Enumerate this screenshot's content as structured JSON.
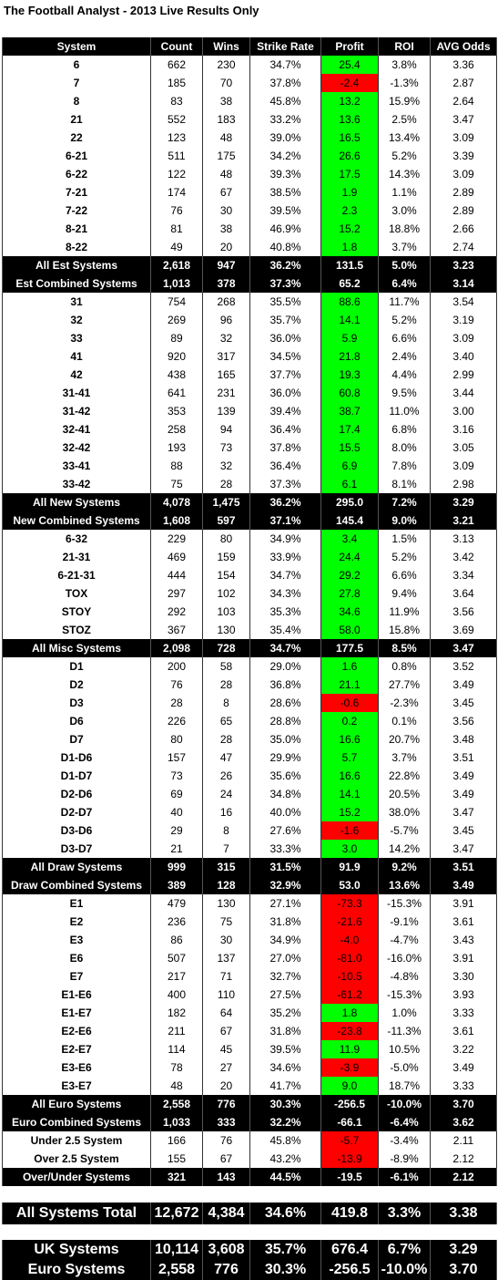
{
  "title": "The Football Analyst - 2013 Live Results Only",
  "profit_colors": {
    "positive": "#00ff00",
    "negative": "#ff0000"
  },
  "table": {
    "header": [
      "System",
      "Count",
      "Wins",
      "Strike Rate",
      "Profit",
      "ROI",
      "AVG Odds"
    ],
    "rows": [
      {
        "cells": [
          "6",
          "662",
          "230",
          "34.7%",
          "25.4",
          "3.8%",
          "3.36"
        ]
      },
      {
        "cells": [
          "7",
          "185",
          "70",
          "37.8%",
          "-2.4",
          "-1.3%",
          "2.87"
        ]
      },
      {
        "cells": [
          "8",
          "83",
          "38",
          "45.8%",
          "13.2",
          "15.9%",
          "2.64"
        ]
      },
      {
        "cells": [
          "21",
          "552",
          "183",
          "33.2%",
          "13.6",
          "2.5%",
          "3.47"
        ]
      },
      {
        "cells": [
          "22",
          "123",
          "48",
          "39.0%",
          "16.5",
          "13.4%",
          "3.09"
        ]
      },
      {
        "cells": [
          "6-21",
          "511",
          "175",
          "34.2%",
          "26.6",
          "5.2%",
          "3.39"
        ]
      },
      {
        "cells": [
          "6-22",
          "122",
          "48",
          "39.3%",
          "17.5",
          "14.3%",
          "3.09"
        ]
      },
      {
        "cells": [
          "7-21",
          "174",
          "67",
          "38.5%",
          "1.9",
          "1.1%",
          "2.89"
        ]
      },
      {
        "cells": [
          "7-22",
          "76",
          "30",
          "39.5%",
          "2.3",
          "3.0%",
          "2.89"
        ]
      },
      {
        "cells": [
          "8-21",
          "81",
          "38",
          "46.9%",
          "15.2",
          "18.8%",
          "2.66"
        ]
      },
      {
        "cells": [
          "8-22",
          "49",
          "20",
          "40.8%",
          "1.8",
          "3.7%",
          "2.74"
        ]
      },
      {
        "cells": [
          "All Est Systems",
          "2,618",
          "947",
          "36.2%",
          "131.5",
          "5.0%",
          "3.23"
        ],
        "style": "summary"
      },
      {
        "cells": [
          "Est Combined Systems",
          "1,013",
          "378",
          "37.3%",
          "65.2",
          "6.4%",
          "3.14"
        ],
        "style": "summary"
      },
      {
        "cells": [
          "31",
          "754",
          "268",
          "35.5%",
          "88.6",
          "11.7%",
          "3.54"
        ]
      },
      {
        "cells": [
          "32",
          "269",
          "96",
          "35.7%",
          "14.1",
          "5.2%",
          "3.19"
        ]
      },
      {
        "cells": [
          "33",
          "89",
          "32",
          "36.0%",
          "5.9",
          "6.6%",
          "3.09"
        ]
      },
      {
        "cells": [
          "41",
          "920",
          "317",
          "34.5%",
          "21.8",
          "2.4%",
          "3.40"
        ]
      },
      {
        "cells": [
          "42",
          "438",
          "165",
          "37.7%",
          "19.3",
          "4.4%",
          "2.99"
        ]
      },
      {
        "cells": [
          "31-41",
          "641",
          "231",
          "36.0%",
          "60.8",
          "9.5%",
          "3.44"
        ]
      },
      {
        "cells": [
          "31-42",
          "353",
          "139",
          "39.4%",
          "38.7",
          "11.0%",
          "3.00"
        ]
      },
      {
        "cells": [
          "32-41",
          "258",
          "94",
          "36.4%",
          "17.4",
          "6.8%",
          "3.16"
        ]
      },
      {
        "cells": [
          "32-42",
          "193",
          "73",
          "37.8%",
          "15.5",
          "8.0%",
          "3.05"
        ]
      },
      {
        "cells": [
          "33-41",
          "88",
          "32",
          "36.4%",
          "6.9",
          "7.8%",
          "3.09"
        ]
      },
      {
        "cells": [
          "33-42",
          "75",
          "28",
          "37.3%",
          "6.1",
          "8.1%",
          "2.98"
        ]
      },
      {
        "cells": [
          "All New Systems",
          "4,078",
          "1,475",
          "36.2%",
          "295.0",
          "7.2%",
          "3.29"
        ],
        "style": "summary"
      },
      {
        "cells": [
          "New Combined Systems",
          "1,608",
          "597",
          "37.1%",
          "145.4",
          "9.0%",
          "3.21"
        ],
        "style": "summary"
      },
      {
        "cells": [
          "6-32",
          "229",
          "80",
          "34.9%",
          "3.4",
          "1.5%",
          "3.13"
        ]
      },
      {
        "cells": [
          "21-31",
          "469",
          "159",
          "33.9%",
          "24.4",
          "5.2%",
          "3.42"
        ]
      },
      {
        "cells": [
          "6-21-31",
          "444",
          "154",
          "34.7%",
          "29.2",
          "6.6%",
          "3.34"
        ]
      },
      {
        "cells": [
          "TOX",
          "297",
          "102",
          "34.3%",
          "27.8",
          "9.4%",
          "3.64"
        ]
      },
      {
        "cells": [
          "STOY",
          "292",
          "103",
          "35.3%",
          "34.6",
          "11.9%",
          "3.56"
        ]
      },
      {
        "cells": [
          "STOZ",
          "367",
          "130",
          "35.4%",
          "58.0",
          "15.8%",
          "3.69"
        ]
      },
      {
        "cells": [
          "All Misc Systems",
          "2,098",
          "728",
          "34.7%",
          "177.5",
          "8.5%",
          "3.47"
        ],
        "style": "summary"
      },
      {
        "cells": [
          "D1",
          "200",
          "58",
          "29.0%",
          "1.6",
          "0.8%",
          "3.52"
        ]
      },
      {
        "cells": [
          "D2",
          "76",
          "28",
          "36.8%",
          "21.1",
          "27.7%",
          "3.49"
        ]
      },
      {
        "cells": [
          "D3",
          "28",
          "8",
          "28.6%",
          "-0.6",
          "-2.3%",
          "3.45"
        ]
      },
      {
        "cells": [
          "D6",
          "226",
          "65",
          "28.8%",
          "0.2",
          "0.1%",
          "3.56"
        ]
      },
      {
        "cells": [
          "D7",
          "80",
          "28",
          "35.0%",
          "16.6",
          "20.7%",
          "3.48"
        ]
      },
      {
        "cells": [
          "D1-D6",
          "157",
          "47",
          "29.9%",
          "5.7",
          "3.7%",
          "3.51"
        ]
      },
      {
        "cells": [
          "D1-D7",
          "73",
          "26",
          "35.6%",
          "16.6",
          "22.8%",
          "3.49"
        ]
      },
      {
        "cells": [
          "D2-D6",
          "69",
          "24",
          "34.8%",
          "14.1",
          "20.5%",
          "3.49"
        ]
      },
      {
        "cells": [
          "D2-D7",
          "40",
          "16",
          "40.0%",
          "15.2",
          "38.0%",
          "3.47"
        ]
      },
      {
        "cells": [
          "D3-D6",
          "29",
          "8",
          "27.6%",
          "-1.6",
          "-5.7%",
          "3.45"
        ]
      },
      {
        "cells": [
          "D3-D7",
          "21",
          "7",
          "33.3%",
          "3.0",
          "14.2%",
          "3.47"
        ]
      },
      {
        "cells": [
          "All Draw Systems",
          "999",
          "315",
          "31.5%",
          "91.9",
          "9.2%",
          "3.51"
        ],
        "style": "summary"
      },
      {
        "cells": [
          "Draw Combined Systems",
          "389",
          "128",
          "32.9%",
          "53.0",
          "13.6%",
          "3.49"
        ],
        "style": "summary"
      },
      {
        "cells": [
          "E1",
          "479",
          "130",
          "27.1%",
          "-73.3",
          "-15.3%",
          "3.91"
        ]
      },
      {
        "cells": [
          "E2",
          "236",
          "75",
          "31.8%",
          "-21.6",
          "-9.1%",
          "3.61"
        ]
      },
      {
        "cells": [
          "E3",
          "86",
          "30",
          "34.9%",
          "-4.0",
          "-4.7%",
          "3.43"
        ]
      },
      {
        "cells": [
          "E6",
          "507",
          "137",
          "27.0%",
          "-81.0",
          "-16.0%",
          "3.91"
        ]
      },
      {
        "cells": [
          "E7",
          "217",
          "71",
          "32.7%",
          "-10.5",
          "-4.8%",
          "3.30"
        ]
      },
      {
        "cells": [
          "E1-E6",
          "400",
          "110",
          "27.5%",
          "-61.2",
          "-15.3%",
          "3.93"
        ]
      },
      {
        "cells": [
          "E1-E7",
          "182",
          "64",
          "35.2%",
          "1.8",
          "1.0%",
          "3.33"
        ]
      },
      {
        "cells": [
          "E2-E6",
          "211",
          "67",
          "31.8%",
          "-23.8",
          "-11.3%",
          "3.61"
        ]
      },
      {
        "cells": [
          "E2-E7",
          "114",
          "45",
          "39.5%",
          "11.9",
          "10.5%",
          "3.22"
        ]
      },
      {
        "cells": [
          "E3-E6",
          "78",
          "27",
          "34.6%",
          "-3.9",
          "-5.0%",
          "3.49"
        ]
      },
      {
        "cells": [
          "E3-E7",
          "48",
          "20",
          "41.7%",
          "9.0",
          "18.7%",
          "3.33"
        ]
      },
      {
        "cells": [
          "All Euro Systems",
          "2,558",
          "776",
          "30.3%",
          "-256.5",
          "-10.0%",
          "3.70"
        ],
        "style": "summary"
      },
      {
        "cells": [
          "Euro Combined Systems",
          "1,033",
          "333",
          "32.2%",
          "-66.1",
          "-6.4%",
          "3.62"
        ],
        "style": "summary"
      },
      {
        "cells": [
          "Under 2.5 System",
          "166",
          "76",
          "45.8%",
          "-5.7",
          "-3.4%",
          "2.11"
        ]
      },
      {
        "cells": [
          "Over 2.5 System",
          "155",
          "67",
          "43.2%",
          "-13.9",
          "-8.9%",
          "2.12"
        ]
      },
      {
        "cells": [
          "Over/Under Systems",
          "321",
          "143",
          "44.5%",
          "-19.5",
          "-6.1%",
          "2.12"
        ],
        "style": "summary"
      }
    ]
  },
  "total": [
    "All Systems Total",
    "12,672",
    "4,384",
    "34.6%",
    "419.8",
    "3.3%",
    "3.38"
  ],
  "regions": [
    [
      "UK Systems",
      "10,114",
      "3,608",
      "35.7%",
      "676.4",
      "6.7%",
      "3.29"
    ],
    [
      "Euro Systems",
      "2,558",
      "776",
      "30.3%",
      "-256.5",
      "-10.0%",
      "3.70"
    ]
  ]
}
